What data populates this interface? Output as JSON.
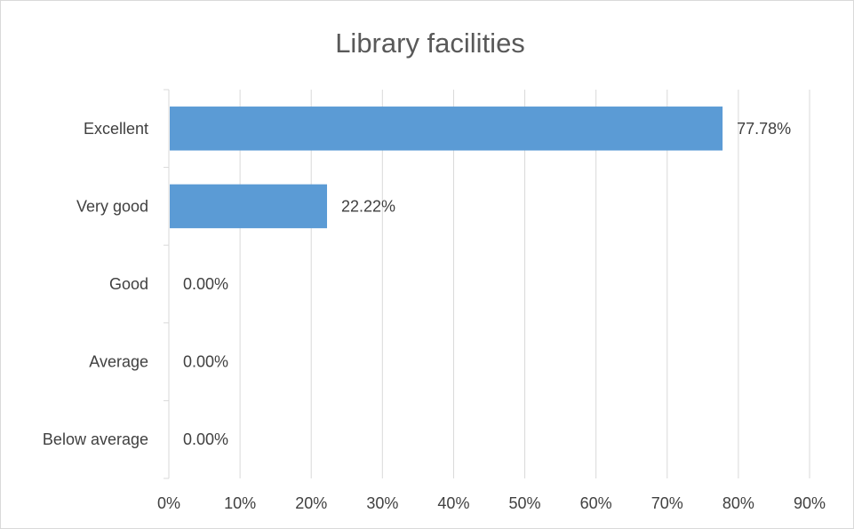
{
  "chart_data": {
    "type": "bar",
    "orientation": "horizontal",
    "title": "Library facilities",
    "categories": [
      "Excellent",
      "Very good",
      "Good",
      "Average",
      "Below average"
    ],
    "values": [
      77.78,
      22.22,
      0,
      0,
      0
    ],
    "data_labels": [
      "77.78%",
      "22.22%",
      "0.00%",
      "0.00%",
      "0.00%"
    ],
    "xlim": [
      0,
      90
    ],
    "x_ticks": [
      0,
      10,
      20,
      30,
      40,
      50,
      60,
      70,
      80,
      90
    ],
    "x_tick_labels": [
      "0%",
      "10%",
      "20%",
      "30%",
      "40%",
      "50%",
      "60%",
      "70%",
      "80%",
      "90%"
    ],
    "grid": true,
    "legend": "none",
    "bar_color": "#5b9bd5",
    "grid_color": "#d9d9d9"
  }
}
